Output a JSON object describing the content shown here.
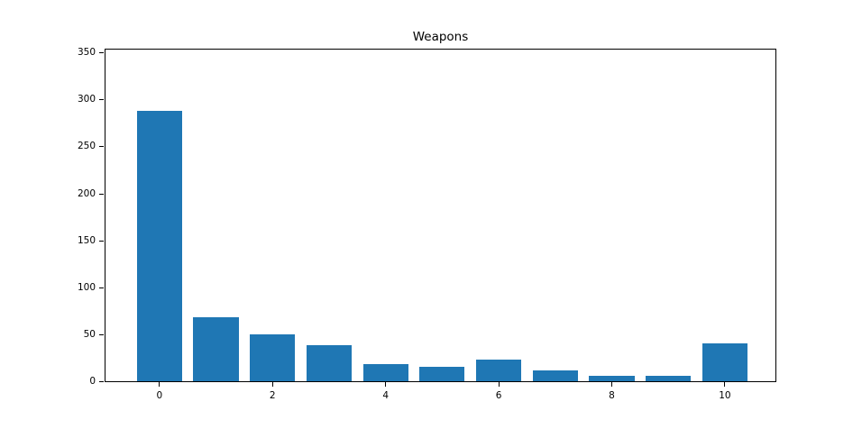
{
  "chart_data": {
    "type": "bar",
    "title": "Weapons",
    "x": [
      0,
      1,
      2,
      3,
      4,
      5,
      6,
      7,
      8,
      9,
      10
    ],
    "values": [
      288,
      68,
      50,
      38,
      18,
      15,
      23,
      12,
      6,
      6,
      40
    ],
    "xticks": [
      0,
      2,
      4,
      6,
      8,
      10
    ],
    "yticks": [
      0,
      50,
      100,
      150,
      200,
      250,
      300,
      350
    ],
    "xlim": [
      -0.97,
      10.91
    ],
    "ylim": [
      0,
      355
    ],
    "bar_width": 0.8,
    "bar_color": "#1f77b4",
    "axis_color": "#000000",
    "background_color": "#ffffff",
    "xlabel": "",
    "ylabel": "",
    "grid": false,
    "legend_position": "none"
  }
}
